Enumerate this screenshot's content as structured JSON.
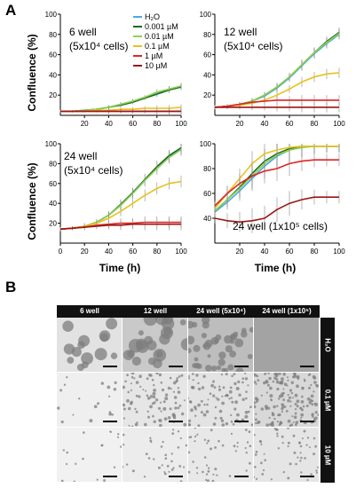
{
  "panels": {
    "a": "A",
    "b": "B"
  },
  "legend": [
    {
      "name": "H₂O",
      "color": "#4aa8e8"
    },
    {
      "name": "0.001 µM",
      "color": "#1a6b1a"
    },
    {
      "name": "0.01 µM",
      "color": "#8fd14f"
    },
    {
      "name": "0.1 µM",
      "color": "#e8c21a"
    },
    {
      "name": "1 µM",
      "color": "#e02424"
    },
    {
      "name": "10 µM",
      "color": "#9c1515"
    }
  ],
  "chart_data": [
    {
      "type": "line",
      "title": "6 well",
      "subtitle": "(5x10⁴ cells)",
      "ylabel": "Confluence (%)",
      "xlabel": "",
      "xlim": [
        0,
        100
      ],
      "ylim": [
        0,
        100
      ],
      "xticks": [
        20,
        40,
        60,
        80,
        100
      ],
      "yticks": [
        20,
        40,
        60,
        80,
        100
      ],
      "x": [
        0,
        10,
        20,
        30,
        40,
        50,
        60,
        70,
        80,
        90,
        100
      ],
      "series": [
        {
          "name": "H₂O",
          "values": [
            4,
            4,
            5,
            6,
            8,
            11,
            14,
            18,
            22,
            26,
            29
          ]
        },
        {
          "name": "0.001 µM",
          "values": [
            4,
            4,
            5,
            6,
            8,
            10,
            13,
            17,
            21,
            25,
            28
          ]
        },
        {
          "name": "0.01 µM",
          "values": [
            4,
            4,
            5,
            6,
            8,
            11,
            14,
            18,
            23,
            26,
            29
          ]
        },
        {
          "name": "0.1 µM",
          "values": [
            4,
            4,
            4,
            5,
            5,
            6,
            6,
            7,
            7,
            7,
            8
          ]
        },
        {
          "name": "1 µM",
          "values": [
            4,
            4,
            4,
            4,
            4,
            4,
            4,
            4,
            4,
            4,
            4
          ]
        },
        {
          "name": "10 µM",
          "values": [
            4,
            4,
            4,
            4,
            4,
            4,
            4,
            4,
            4,
            4,
            4
          ]
        }
      ],
      "error": [
        1,
        1,
        1,
        1,
        2,
        2,
        2,
        2,
        3,
        3,
        3
      ]
    },
    {
      "type": "line",
      "title": "12 well",
      "subtitle": "(5x10⁴ cells)",
      "ylabel": "",
      "xlabel": "",
      "xlim": [
        0,
        100
      ],
      "ylim": [
        0,
        100
      ],
      "xticks": [
        20,
        40,
        60,
        80,
        100
      ],
      "yticks": [
        20,
        40,
        60,
        80,
        100
      ],
      "x": [
        0,
        10,
        20,
        30,
        40,
        50,
        60,
        70,
        80,
        90,
        100
      ],
      "series": [
        {
          "name": "H₂O",
          "values": [
            8,
            9,
            11,
            14,
            19,
            27,
            37,
            49,
            61,
            71,
            80
          ]
        },
        {
          "name": "0.001 µM",
          "values": [
            8,
            9,
            11,
            14,
            20,
            28,
            38,
            50,
            62,
            73,
            82
          ]
        },
        {
          "name": "0.01 µM",
          "values": [
            8,
            9,
            11,
            14,
            20,
            28,
            38,
            50,
            62,
            72,
            81
          ]
        },
        {
          "name": "0.1 µM",
          "values": [
            8,
            9,
            10,
            12,
            15,
            20,
            26,
            33,
            38,
            41,
            42
          ]
        },
        {
          "name": "1 µM",
          "values": [
            8,
            9,
            11,
            13,
            14,
            15,
            15,
            15,
            15,
            15,
            15
          ]
        },
        {
          "name": "10 µM",
          "values": [
            8,
            8,
            8,
            8,
            8,
            8,
            8,
            8,
            8,
            8,
            8
          ]
        }
      ],
      "error": [
        2,
        2,
        2,
        3,
        3,
        4,
        4,
        5,
        5,
        5,
        5
      ]
    },
    {
      "type": "line",
      "title": "24 well",
      "subtitle": "(5x10⁴ cells)",
      "ylabel": "Confluence (%)",
      "xlabel": "Time (h)",
      "xlim": [
        0,
        100
      ],
      "ylim": [
        0,
        100
      ],
      "xticks": [
        0,
        20,
        40,
        60,
        80,
        100
      ],
      "yticks": [
        20,
        40,
        60,
        80,
        100
      ],
      "x": [
        0,
        10,
        20,
        30,
        40,
        50,
        60,
        70,
        80,
        90,
        100
      ],
      "series": [
        {
          "name": "H₂O",
          "values": [
            14,
            15,
            17,
            21,
            28,
            38,
            50,
            63,
            76,
            87,
            95
          ]
        },
        {
          "name": "0.001 µM",
          "values": [
            14,
            15,
            17,
            21,
            28,
            39,
            51,
            64,
            77,
            88,
            96
          ]
        },
        {
          "name": "0.01 µM",
          "values": [
            14,
            15,
            17,
            21,
            28,
            38,
            50,
            63,
            75,
            86,
            94
          ]
        },
        {
          "name": "0.1 µM",
          "values": [
            14,
            15,
            17,
            20,
            25,
            32,
            40,
            48,
            55,
            60,
            62
          ]
        },
        {
          "name": "1 µM",
          "values": [
            14,
            15,
            16,
            18,
            19,
            20,
            20,
            21,
            21,
            21,
            21
          ]
        },
        {
          "name": "10 µM",
          "values": [
            14,
            15,
            16,
            17,
            18,
            18,
            19,
            19,
            19,
            19,
            19
          ]
        }
      ],
      "error": [
        2,
        2,
        3,
        3,
        4,
        5,
        5,
        6,
        6,
        6,
        6
      ]
    },
    {
      "type": "line",
      "title": "24 well (1x10⁵ cells)",
      "subtitle": "",
      "ylabel": "",
      "xlabel": "Time (h)",
      "xlim": [
        0,
        100
      ],
      "ylim": [
        20,
        100
      ],
      "xticks": [
        20,
        40,
        60,
        80,
        100
      ],
      "yticks": [
        40,
        60,
        80,
        100
      ],
      "x": [
        0,
        10,
        20,
        30,
        40,
        50,
        60,
        70,
        80,
        90,
        100
      ],
      "series": [
        {
          "name": "H₂O",
          "values": [
            45,
            53,
            62,
            72,
            82,
            90,
            95,
            97,
            98,
            98,
            98
          ]
        },
        {
          "name": "0.001 µM",
          "values": [
            46,
            55,
            65,
            76,
            86,
            92,
            96,
            98,
            98,
            98,
            98
          ]
        },
        {
          "name": "0.01 µM",
          "values": [
            46,
            55,
            64,
            74,
            84,
            91,
            95,
            97,
            98,
            98,
            98
          ]
        },
        {
          "name": "0.1 µM",
          "values": [
            48,
            60,
            72,
            84,
            92,
            95,
            97,
            98,
            98,
            98,
            98
          ]
        },
        {
          "name": "1 µM",
          "values": [
            50,
            60,
            68,
            74,
            78,
            80,
            84,
            86,
            87,
            87,
            87
          ]
        },
        {
          "name": "10 µM",
          "values": [
            40,
            38,
            37,
            38,
            40,
            47,
            52,
            55,
            57,
            57,
            57
          ]
        }
      ],
      "error": [
        4,
        6,
        8,
        10,
        10,
        10,
        10,
        8,
        6,
        5,
        5
      ]
    }
  ],
  "micro": {
    "columns": [
      "6 well",
      "12 well",
      "24 well (5x10⁴)",
      "24 well (1x10⁵)"
    ],
    "rows": [
      "H₂O",
      "0.1 µM",
      "10 µM"
    ]
  }
}
